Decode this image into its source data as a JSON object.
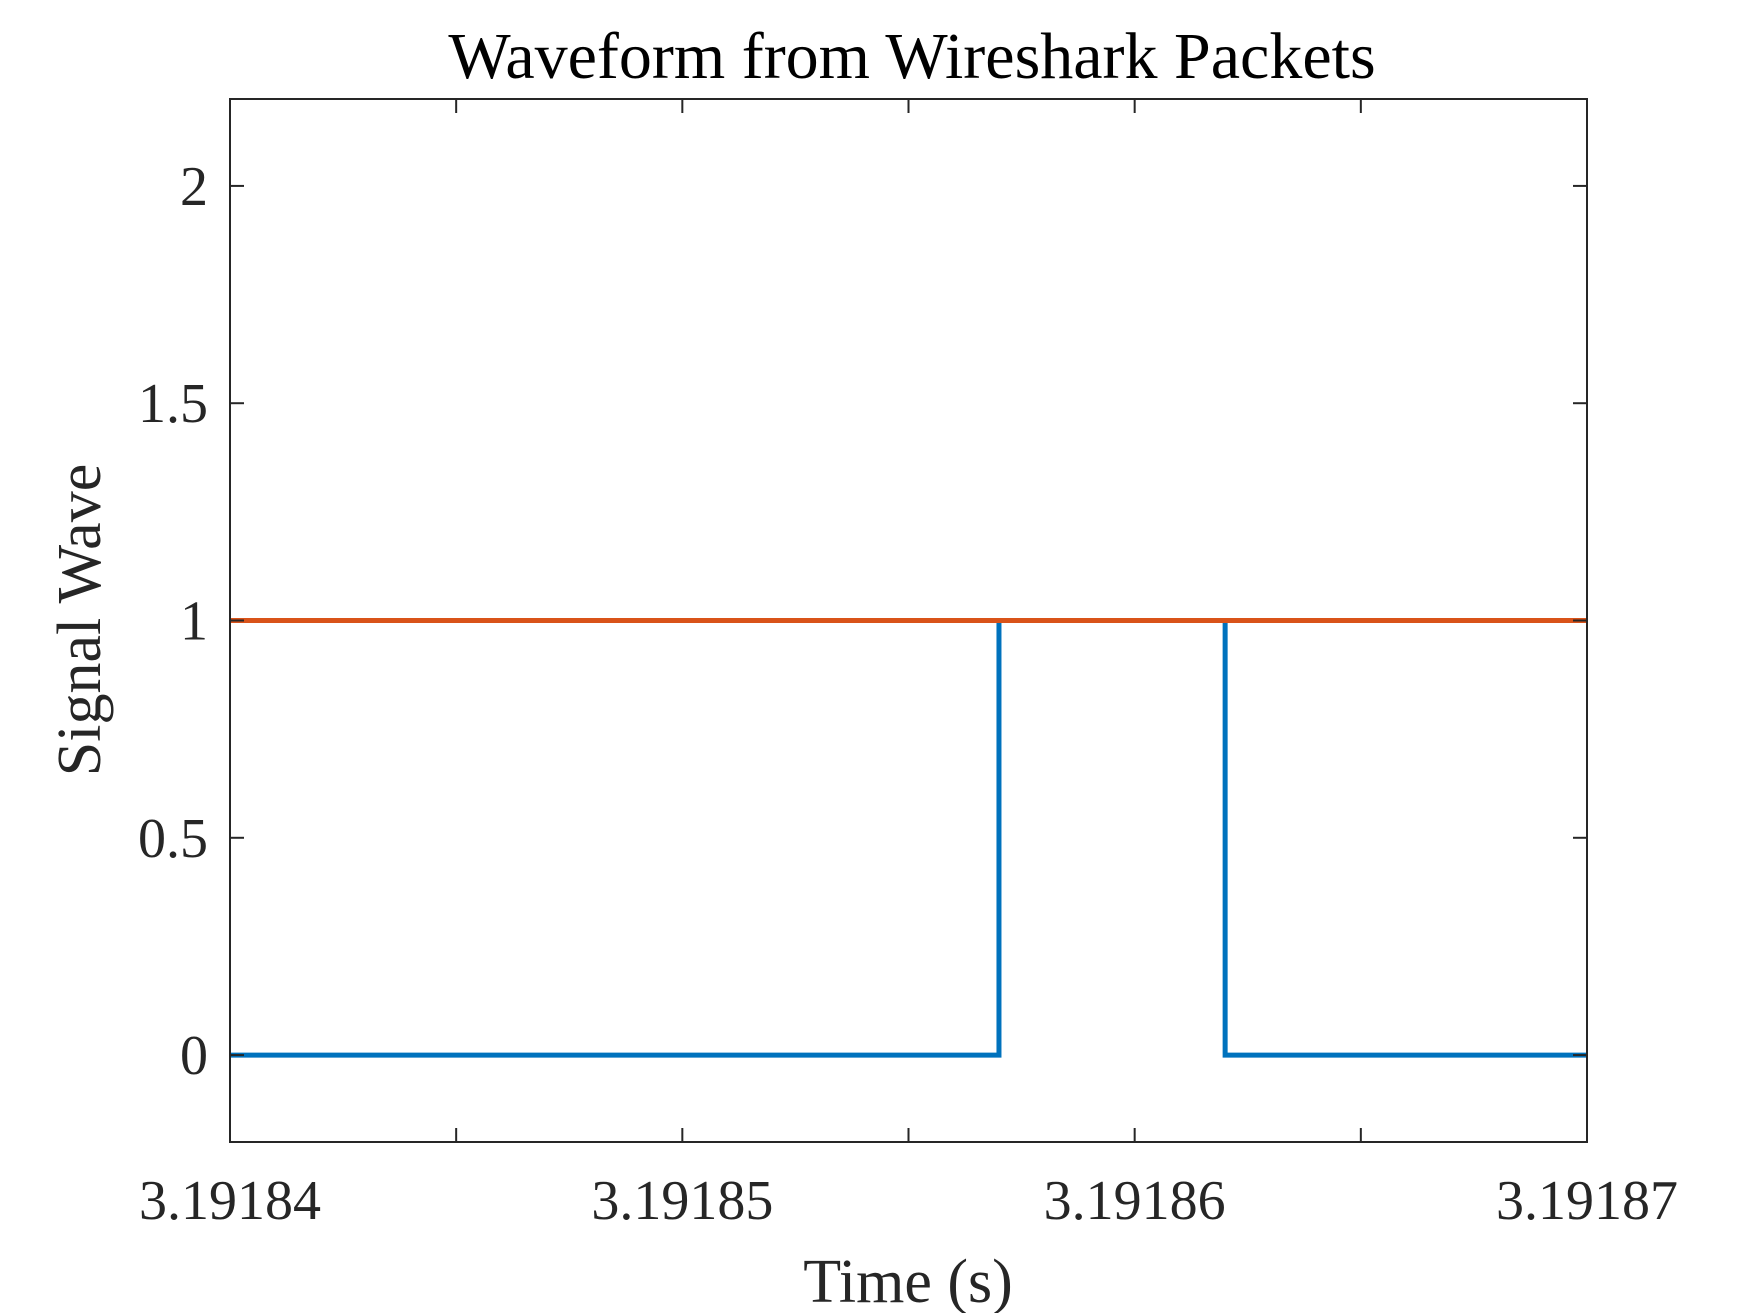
{
  "chart_data": {
    "type": "line",
    "title": "Waveform from Wireshark Packets",
    "xlabel": "Time (s)",
    "ylabel": "Signal Wave",
    "xlim": [
      3.19184,
      3.19187
    ],
    "ylim": [
      -0.2,
      2.2
    ],
    "xticks": [
      3.19184,
      3.191845,
      3.19185,
      3.191855,
      3.19186,
      3.191865,
      3.19187
    ],
    "xtick_labels": [
      "3.19184",
      "",
      "3.19185",
      "",
      "3.19186",
      "",
      "3.19187"
    ],
    "yticks": [
      0,
      0.5,
      1,
      1.5,
      2
    ],
    "ytick_labels": [
      "0",
      "0.5",
      "1",
      "1.5",
      "2"
    ],
    "grid": false,
    "legend": false,
    "series": [
      {
        "color": "#0072BD",
        "step": true,
        "x": [
          3.19184,
          3.191857,
          3.191857,
          3.191862,
          3.191862,
          3.19187
        ],
        "y": [
          0,
          0,
          1,
          1,
          0,
          0
        ]
      },
      {
        "color": "#D95319",
        "step": false,
        "x": [
          3.19184,
          3.19187
        ],
        "y": [
          1,
          1
        ]
      }
    ]
  }
}
